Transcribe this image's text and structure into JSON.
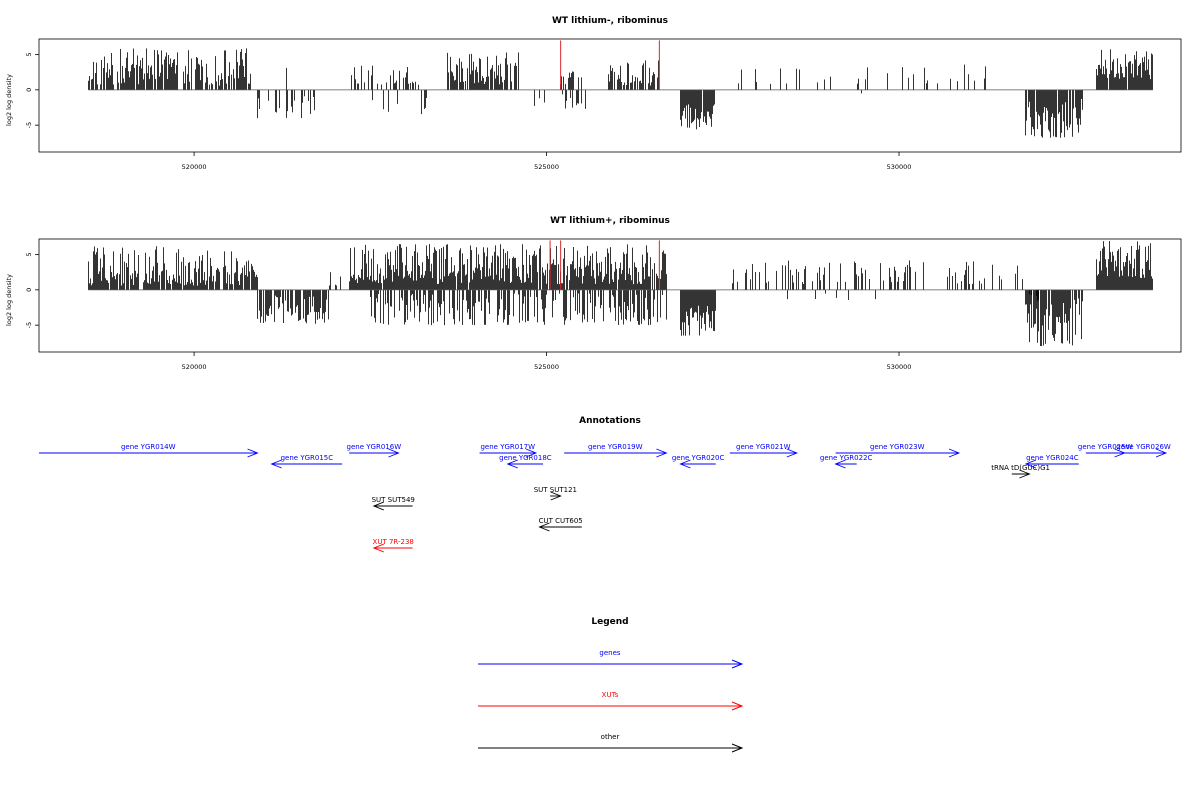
{
  "chart_data": [
    {
      "type": "bar",
      "title": "WT lithium-, ribominus",
      "xlabel": "",
      "ylabel": "log2 log density",
      "xlim": [
        517800,
        534000
      ],
      "ylim": [
        -8.8,
        7.2
      ],
      "xticks": [
        520000,
        525000,
        530000
      ],
      "xtick_labels": [
        "520000",
        "525000",
        "530000"
      ],
      "yticks": [
        -5,
        0,
        5
      ],
      "ytick_labels": [
        "-5",
        "0",
        "5"
      ],
      "markers": {
        "color": "#d62728",
        "x": [
          525200,
          526600
        ],
        "height": 7.0
      },
      "bar_color": "#000000",
      "segments": [
        {
          "from": 518500,
          "to": 520800,
          "min": 0.6,
          "max": 6.0,
          "density": 0.78
        },
        {
          "from": 520900,
          "to": 521800,
          "min": -4.0,
          "max": -0.5,
          "density": 0.18
        },
        {
          "from": 521300,
          "to": 521400,
          "min": 2.0,
          "max": 3.2,
          "density": 0.15
        },
        {
          "from": 522200,
          "to": 523200,
          "min": 0.6,
          "max": 3.5,
          "density": 0.4
        },
        {
          "from": 522500,
          "to": 523300,
          "min": -3.8,
          "max": -0.8,
          "density": 0.12
        },
        {
          "from": 523600,
          "to": 524600,
          "min": 0.8,
          "max": 5.3,
          "density": 0.85
        },
        {
          "from": 524800,
          "to": 525000,
          "min": -3.0,
          "max": -1.0,
          "density": 0.1
        },
        {
          "from": 525200,
          "to": 525500,
          "min": 0.8,
          "max": 3.6,
          "density": 0.5
        },
        {
          "from": 525200,
          "to": 525650,
          "min": -2.8,
          "max": -0.6,
          "density": 0.25
        },
        {
          "from": 525850,
          "to": 526600,
          "min": 0.6,
          "max": 4.3,
          "density": 0.7
        },
        {
          "from": 526900,
          "to": 527400,
          "min": -5.6,
          "max": -2.0,
          "density": 0.95
        },
        {
          "from": 527700,
          "to": 531300,
          "min": 0.8,
          "max": 4.0,
          "density": 0.12
        },
        {
          "from": 529300,
          "to": 529700,
          "min": -1.4,
          "max": -0.4,
          "density": 0.03
        },
        {
          "from": 531800,
          "to": 532600,
          "min": -6.8,
          "max": -1.0,
          "density": 0.9
        },
        {
          "from": 532800,
          "to": 533600,
          "min": 1.5,
          "max": 5.8,
          "density": 0.95
        }
      ]
    },
    {
      "type": "bar",
      "title": "WT lithium+, ribominus",
      "xlabel": "",
      "ylabel": "log2 log density",
      "xlim": [
        517800,
        534000
      ],
      "ylim": [
        -8.8,
        7.2
      ],
      "xticks": [
        520000,
        525000,
        530000
      ],
      "xtick_labels": [
        "520000",
        "525000",
        "530000"
      ],
      "yticks": [
        -5,
        0,
        5
      ],
      "ytick_labels": [
        "-5",
        "0",
        "5"
      ],
      "markers": {
        "color": "#d62728",
        "x": [
          525050,
          525200,
          526600
        ],
        "height": 7.0
      },
      "bar_color": "#000000",
      "segments": [
        {
          "from": 518500,
          "to": 520900,
          "min": 0.6,
          "max": 6.2,
          "density": 0.85
        },
        {
          "from": 520900,
          "to": 521900,
          "min": -4.8,
          "max": -0.8,
          "density": 0.75
        },
        {
          "from": 521700,
          "to": 522200,
          "min": 0.6,
          "max": 3.0,
          "density": 0.2
        },
        {
          "from": 522200,
          "to": 526700,
          "min": 0.8,
          "max": 6.5,
          "density": 0.95
        },
        {
          "from": 522500,
          "to": 526700,
          "min": -5.0,
          "max": -0.5,
          "density": 0.55
        },
        {
          "from": 526900,
          "to": 527400,
          "min": -6.5,
          "max": -2.0,
          "density": 0.95
        },
        {
          "from": 527600,
          "to": 531500,
          "min": 0.8,
          "max": 4.2,
          "density": 0.25
        },
        {
          "from": 528000,
          "to": 530500,
          "min": -1.5,
          "max": -0.3,
          "density": 0.04
        },
        {
          "from": 531600,
          "to": 532000,
          "min": -2.0,
          "max": -0.6,
          "density": 0.1
        },
        {
          "from": 531600,
          "to": 531800,
          "min": 1.5,
          "max": 6.0,
          "density": 0.3
        },
        {
          "from": 531800,
          "to": 532600,
          "min": -8.0,
          "max": -1.0,
          "density": 0.95
        },
        {
          "from": 532800,
          "to": 533600,
          "min": 1.5,
          "max": 7.0,
          "density": 0.98
        }
      ]
    }
  ],
  "annotations": {
    "title": "Annotations",
    "features": [
      {
        "label": "gene YGR014W",
        "from": 517800,
        "to": 520900,
        "row": 0,
        "dir": "right",
        "color": "#0000ff"
      },
      {
        "label": "gene YGR015C",
        "from": 521100,
        "to": 522100,
        "row": 1,
        "dir": "left",
        "color": "#0000ff"
      },
      {
        "label": "gene YGR016W",
        "from": 522200,
        "to": 522900,
        "row": 0,
        "dir": "right",
        "color": "#0000ff"
      },
      {
        "label": "gene YGR017W",
        "from": 524050,
        "to": 524850,
        "row": 0,
        "dir": "right",
        "color": "#0000ff"
      },
      {
        "label": "gene YGR018C",
        "from": 524450,
        "to": 524950,
        "row": 1,
        "dir": "left",
        "color": "#0000ff"
      },
      {
        "label": "gene YGR019W",
        "from": 525250,
        "to": 526700,
        "row": 0,
        "dir": "right",
        "color": "#0000ff"
      },
      {
        "label": "gene YGR020C",
        "from": 526900,
        "to": 527400,
        "row": 1,
        "dir": "left",
        "color": "#0000ff"
      },
      {
        "label": "gene YGR021W",
        "from": 527600,
        "to": 528550,
        "row": 0,
        "dir": "right",
        "color": "#0000ff"
      },
      {
        "label": "gene YGR022C",
        "from": 529100,
        "to": 529400,
        "row": 1,
        "dir": "left",
        "color": "#0000ff"
      },
      {
        "label": "gene YGR023W",
        "from": 529100,
        "to": 530850,
        "row": 0,
        "dir": "right",
        "color": "#0000ff"
      },
      {
        "label": "tRNA tD(GUC)G1",
        "from": 531600,
        "to": 531850,
        "row": 2,
        "dir": "right",
        "color": "#000000"
      },
      {
        "label": "gene YGR024C",
        "from": 531800,
        "to": 532550,
        "row": 1,
        "dir": "left",
        "color": "#0000ff"
      },
      {
        "label": "gene YGR025W",
        "from": 532650,
        "to": 533200,
        "row": 0,
        "dir": "right",
        "color": "#0000ff"
      },
      {
        "label": "gene YGR026W",
        "from": 533150,
        "to": 533850,
        "row": 0,
        "dir": "right",
        "color": "#0000ff"
      },
      {
        "label": "SUT SUT121",
        "from": 525050,
        "to": 525200,
        "row": 3,
        "dir": "right",
        "color": "#000000"
      },
      {
        "label": "SUT SUT549",
        "from": 522550,
        "to": 523100,
        "row": 4,
        "dir": "left",
        "color": "#000000"
      },
      {
        "label": "CUT CUT605",
        "from": 524900,
        "to": 525500,
        "row": 5,
        "dir": "left",
        "color": "#000000"
      },
      {
        "label": "XUT 7R-238",
        "from": 522550,
        "to": 523100,
        "row": 6,
        "dir": "left",
        "color": "#ff0000"
      }
    ]
  },
  "legend": {
    "title": "Legend",
    "items": [
      {
        "label": "genes",
        "color": "#0000ff"
      },
      {
        "label": "XUTs",
        "color": "#ff0000"
      },
      {
        "label": "other",
        "color": "#000000"
      }
    ]
  }
}
